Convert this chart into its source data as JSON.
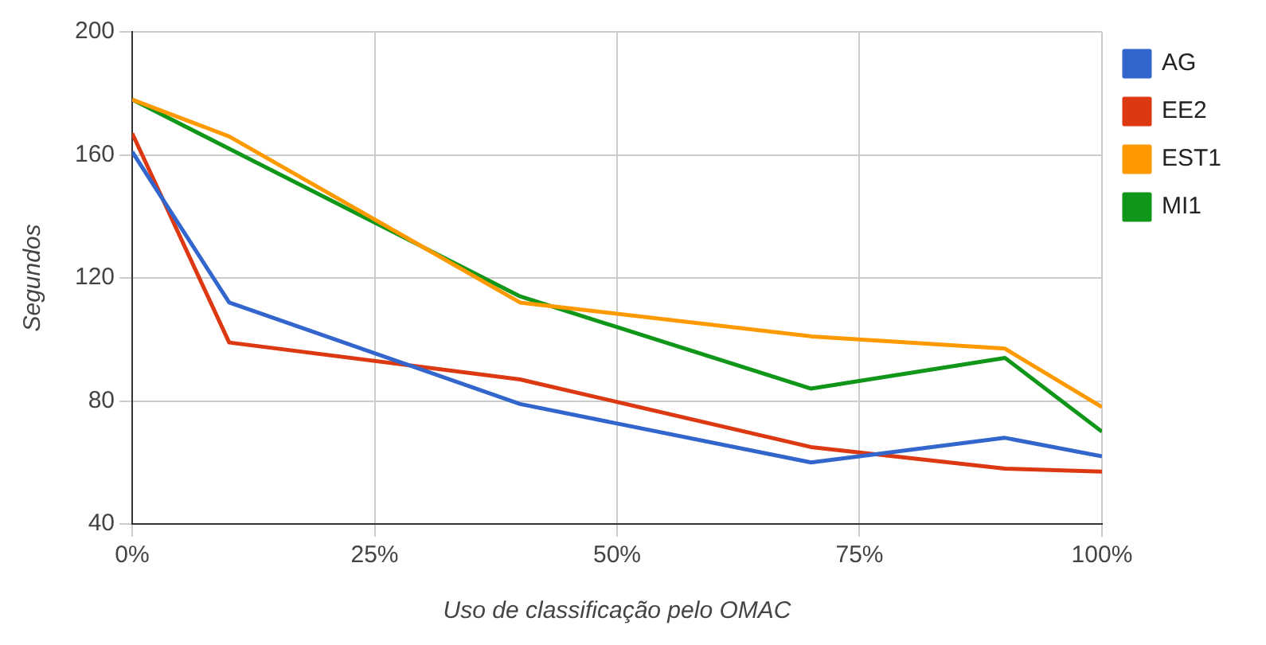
{
  "chart_data": {
    "type": "line",
    "xlabel": "Uso de classificação pelo OMAC",
    "ylabel": "Segundos",
    "x": [
      0,
      10,
      40,
      70,
      90,
      100
    ],
    "series": [
      {
        "name": "AG",
        "color": "#3366cc",
        "values": [
          161,
          112,
          79,
          60,
          68,
          62
        ]
      },
      {
        "name": "EE2",
        "color": "#dc3912",
        "values": [
          167,
          99,
          87,
          65,
          58,
          57
        ]
      },
      {
        "name": "EST1",
        "color": "#ff9900",
        "values": [
          178,
          166,
          112,
          101,
          97,
          78
        ]
      },
      {
        "name": "MI1",
        "color": "#109618",
        "values": [
          178,
          162,
          114,
          84,
          94,
          70
        ]
      }
    ],
    "xlim": [
      0,
      100
    ],
    "xticks": [
      {
        "value": 0,
        "label": "0%"
      },
      {
        "value": 25,
        "label": "25%"
      },
      {
        "value": 50,
        "label": "50%"
      },
      {
        "value": 75,
        "label": "75%"
      },
      {
        "value": 100,
        "label": "100%"
      }
    ],
    "ylim": [
      40,
      200
    ],
    "yticks": [
      40,
      80,
      120,
      160,
      200
    ],
    "grid": true,
    "legend": "right",
    "marker": "none",
    "line_style": "solid"
  }
}
